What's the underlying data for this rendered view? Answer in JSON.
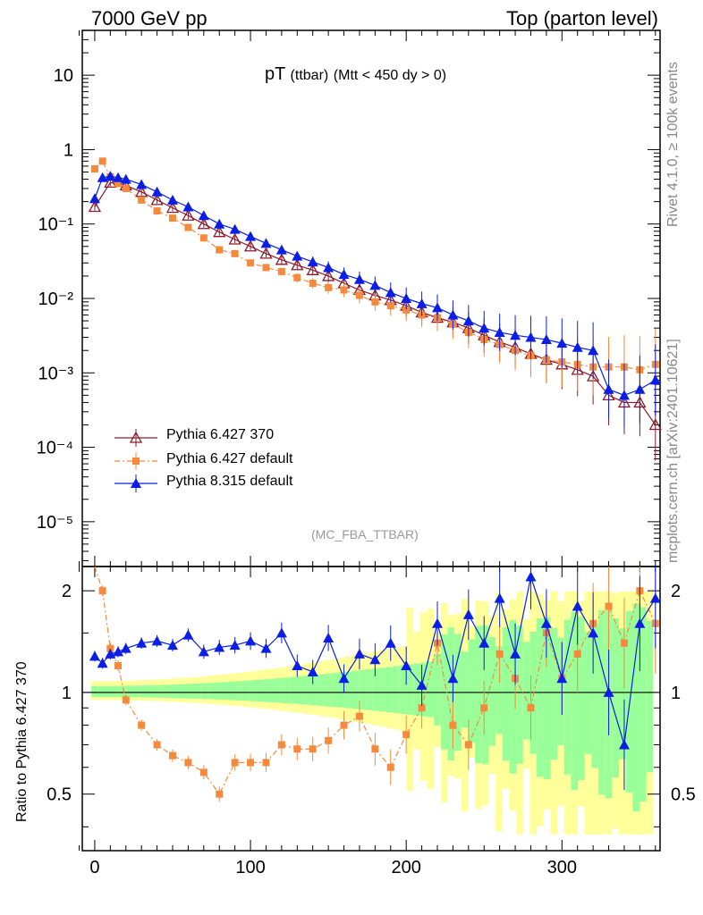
{
  "header": {
    "left": "7000 GeV pp",
    "right": "Top (parton level)"
  },
  "title_main": "pT",
  "title_sub": "(ttbar)",
  "title_cut": "(Mtt < 450 dy > 0)",
  "analysis": "(MC_FBA_TTBAR)",
  "side_top": "Rivet 4.1.0, ≥ 100k events",
  "side_bottom": "mcplots.cern.ch [arXiv:2401.10621]",
  "colors": {
    "p6_370": "#8b1a2a",
    "p6_default": "#f58a3c",
    "p8_default": "#0a1ee6",
    "band_green": "#99ff99",
    "band_yellow": "#ffff99"
  },
  "chart_data": {
    "type": "line",
    "title": "pT (ttbar) (Mtt < 450 dy > 0)",
    "xlabel": "",
    "ylabel_main": "",
    "ylabel_ratio": "Ratio to Pythia 6.427 370",
    "xlim": [
      -8,
      363
    ],
    "ylim_main": [
      2.5e-06,
      40
    ],
    "ylim_ratio": [
      0.34,
      2.36
    ],
    "yscale_main": "log",
    "x_ticks": [
      "0",
      "100",
      "200",
      "300"
    ],
    "y_ticks_main": [
      "10",
      "1",
      "10⁻¹",
      "10⁻²",
      "10⁻³",
      "10⁻⁴",
      "10⁻⁵"
    ],
    "y_ticks_ratio": [
      "2",
      "1",
      "0.5"
    ],
    "legend": [
      "Pythia 6.427 370",
      "Pythia 6.427 default",
      "Pythia 8.315 default"
    ],
    "series": [
      {
        "name": "Pythia 6.427 370",
        "x": [
          0,
          10,
          20,
          30,
          40,
          50,
          60,
          70,
          80,
          90,
          100,
          110,
          120,
          130,
          140,
          150,
          160,
          170,
          180,
          190,
          200,
          210,
          220,
          230,
          240,
          250,
          260,
          270,
          280,
          290,
          300,
          310,
          320,
          330,
          340,
          350,
          360
        ],
        "y": [
          0.17,
          0.36,
          0.33,
          0.27,
          0.21,
          0.165,
          0.13,
          0.1,
          0.078,
          0.062,
          0.05,
          0.04,
          0.033,
          0.028,
          0.024,
          0.02,
          0.016,
          0.013,
          0.011,
          0.0095,
          0.008,
          0.0065,
          0.0055,
          0.0048,
          0.004,
          0.0032,
          0.0026,
          0.0022,
          0.0018,
          0.0015,
          0.0013,
          0.0011,
          0.0009,
          0.0005,
          0.0004,
          0.0004,
          0.0002
        ],
        "ratio": [
          1,
          1,
          1,
          1,
          1,
          1,
          1,
          1,
          1,
          1,
          1,
          1,
          1,
          1,
          1,
          1,
          1,
          1,
          1,
          1,
          1,
          1,
          1,
          1,
          1,
          1,
          1,
          1,
          1,
          1,
          1,
          1,
          1,
          1,
          1,
          1,
          1
        ]
      },
      {
        "name": "Pythia 6.427 default",
        "x": [
          0,
          5,
          10,
          15,
          20,
          30,
          40,
          50,
          60,
          70,
          80,
          90,
          100,
          110,
          120,
          130,
          140,
          150,
          160,
          170,
          180,
          190,
          200,
          210,
          220,
          230,
          240,
          250,
          260,
          270,
          280,
          290,
          300,
          310,
          320,
          330,
          340,
          350,
          360
        ],
        "y": [
          0.55,
          0.7,
          0.43,
          0.35,
          0.3,
          0.21,
          0.15,
          0.12,
          0.09,
          0.065,
          0.045,
          0.04,
          0.03,
          0.026,
          0.023,
          0.019,
          0.016,
          0.014,
          0.013,
          0.011,
          0.009,
          0.008,
          0.007,
          0.006,
          0.0055,
          0.0045,
          0.0035,
          0.0028,
          0.0024,
          0.002,
          0.0017,
          0.0015,
          0.0014,
          0.0013,
          0.0012,
          0.0012,
          0.0012,
          0.0011,
          0.0013
        ],
        "ratio": [
          2.4,
          2.0,
          1.35,
          1.2,
          0.95,
          0.8,
          0.7,
          0.65,
          0.62,
          0.58,
          0.5,
          0.62,
          0.62,
          0.62,
          0.7,
          0.68,
          0.68,
          0.72,
          0.8,
          0.85,
          0.68,
          0.6,
          0.75,
          0.9,
          1.4,
          0.8,
          0.7,
          0.9,
          1.3,
          1.1,
          0.9,
          1.5,
          1.1,
          1.3,
          1.6,
          1.8,
          1.4,
          2.0,
          1.6
        ]
      },
      {
        "name": "Pythia 8.315 default",
        "x": [
          0,
          5,
          10,
          15,
          20,
          30,
          40,
          50,
          60,
          70,
          80,
          90,
          100,
          110,
          120,
          130,
          140,
          150,
          160,
          170,
          180,
          190,
          200,
          210,
          220,
          230,
          240,
          250,
          260,
          270,
          280,
          290,
          300,
          310,
          320,
          330,
          340,
          350,
          360
        ],
        "y": [
          0.22,
          0.42,
          0.44,
          0.42,
          0.4,
          0.34,
          0.27,
          0.21,
          0.17,
          0.13,
          0.1,
          0.085,
          0.068,
          0.055,
          0.045,
          0.037,
          0.031,
          0.026,
          0.021,
          0.018,
          0.015,
          0.012,
          0.01,
          0.0085,
          0.0075,
          0.006,
          0.005,
          0.004,
          0.0035,
          0.0032,
          0.003,
          0.0028,
          0.0025,
          0.0022,
          0.002,
          0.0006,
          0.0005,
          0.0006,
          0.0008
        ],
        "ratio": [
          1.28,
          1.22,
          1.3,
          1.32,
          1.35,
          1.4,
          1.42,
          1.38,
          1.48,
          1.32,
          1.36,
          1.38,
          1.42,
          1.35,
          1.5,
          1.2,
          1.15,
          1.45,
          1.1,
          1.3,
          1.25,
          1.4,
          1.2,
          1.05,
          1.6,
          1.1,
          1.7,
          1.4,
          1.9,
          1.3,
          2.2,
          1.6,
          1.1,
          1.8,
          1.5,
          1.0,
          0.7,
          1.6,
          1.9
        ]
      }
    ]
  }
}
